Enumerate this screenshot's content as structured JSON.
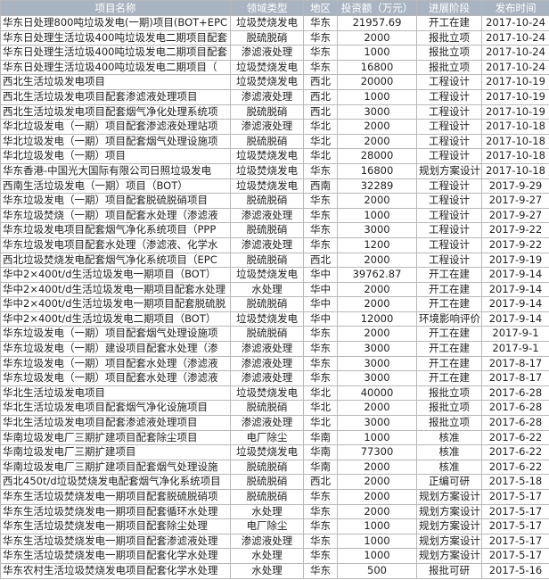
{
  "table": {
    "headers": [
      "项目名称",
      "领域类型",
      "地区",
      "投资额（万元）",
      "进展阶段",
      "发布时间"
    ],
    "rows": [
      [
        "华东日处理800吨垃圾发电(一期)项目(BOT+EPC",
        "垃圾焚烧发电",
        "华东",
        "21957.69",
        "开工在建",
        "2017-10-24"
      ],
      [
        "华东日处理生活垃圾400吨垃圾发电二期项目配套",
        "脱硫脱硝",
        "华东",
        "2000",
        "报批立项",
        "2017-10-24"
      ],
      [
        "华东日处理生活垃圾400吨垃圾发电二期项目配套",
        "渗滤液处理",
        "华东",
        "1000",
        "报批立项",
        "2017-10-24"
      ],
      [
        "华东日处理生活垃圾400吨垃圾发电二期项目（",
        "垃圾焚烧发电",
        "华东",
        "16800",
        "报批立项",
        "2017-10-24"
      ],
      [
        "西北生活垃圾发电项目",
        "垃圾焚烧发电",
        "西北",
        "20000",
        "工程设计",
        "2017-10-19"
      ],
      [
        "西北生活垃圾发电项目配套渗滤液处理项目",
        "渗滤液处理",
        "西北",
        "1000",
        "工程设计",
        "2017-10-19"
      ],
      [
        "西北生活垃圾发电项目配套烟气净化处理系统项",
        "脱硫脱硝",
        "西北",
        "3000",
        "工程设计",
        "2017-10-19"
      ],
      [
        "华北垃圾发电（一期）项目配套渗滤液处理站项",
        "渗滤液处理",
        "华北",
        "2000",
        "工程设计",
        "2017-10-18"
      ],
      [
        "华北垃圾发电（一期）项目配套烟气处理设施项",
        "脱硫脱硝",
        "华北",
        "2000",
        "工程设计",
        "2017-10-18"
      ],
      [
        "华北垃圾发电（一期）项目",
        "垃圾焚烧发电",
        "华北",
        "28000",
        "工程设计",
        "2017-10-18"
      ],
      [
        "华东香港-中国光大国际有限公司日照垃圾发电",
        "垃圾焚烧发电",
        "华东",
        "16800",
        "规划方案设计",
        "2017-10-18"
      ],
      [
        "西南生活垃圾发电（一期）项目（BOT）",
        "垃圾焚烧发电",
        "西南",
        "32289",
        "工程设计",
        "2017-9-29"
      ],
      [
        "华东垃圾发电（一期）项目配套脱硫脱硝项目",
        "脱硫脱硝",
        "华东",
        "2000",
        "工程设计",
        "2017-9-27"
      ],
      [
        "华东垃圾焚烧（一期）项目配套水处理（渗滤液",
        "渗滤液处理",
        "华东",
        "1000",
        "工程设计",
        "2017-9-27"
      ],
      [
        "华东垃圾发电项目配套烟气净化系统项目（PPP",
        "脱硫脱硝",
        "华东",
        "3000",
        "工程设计",
        "2017-9-22"
      ],
      [
        "华东垃圾发电项目配套水处理（渗滤液、化学水",
        "渗滤液处理",
        "华东",
        "1200",
        "工程设计",
        "2017-9-22"
      ],
      [
        "西北垃圾焚烧发电配套烟气净化系统项目（EPC",
        "脱硫脱硝",
        "西北",
        "2000",
        "工程设计",
        "2017-9-19"
      ],
      [
        "华中2×400t/d生活垃圾发电一期项目（BOT）",
        "垃圾焚烧发电",
        "华中",
        "39762.87",
        "开工在建",
        "2017-9-14"
      ],
      [
        "华中2×400t/d生活垃圾发电一期项目配套水处理",
        "水处理",
        "华中",
        "2000",
        "开工在建",
        "2017-9-14"
      ],
      [
        "华中2×400t/d生活垃圾发电一期项目配套脱硫脱",
        "脱硫脱硝",
        "华中",
        "2000",
        "开工在建",
        "2017-9-14"
      ],
      [
        "华中2×400t/d生活垃圾发电二期项目（BOT）",
        "垃圾焚烧发电",
        "华中",
        "12000",
        "环境影响评价",
        "2017-9-14"
      ],
      [
        "华东垃圾发电（一期）项目配套烟气处理设施项",
        "脱硫脱硝",
        "华东",
        "2000",
        "开工在建",
        "2017-9-1"
      ],
      [
        "华东垃圾发电（一期）建设项目配套水处理（渗",
        "渗滤液处理",
        "华东",
        "3000",
        "开工在建",
        "2017-9-1"
      ],
      [
        "华东垃圾发电（一期）项目配套水处理（渗滤液",
        "渗滤液处理",
        "华东",
        "3000",
        "开工在建",
        "2017-8-17"
      ],
      [
        "华东垃圾发电（一期）项目配套水处理（渗滤液",
        "渗滤液处理",
        "华东",
        "3000",
        "开工在建",
        "2017-8-17"
      ],
      [
        "华北生活垃圾发电项目",
        "垃圾焚烧发电",
        "华北",
        "40000",
        "报批立项",
        "2017-6-28"
      ],
      [
        "华北生活垃圾发电项目配套烟气净化设施项目",
        "脱硫脱硝",
        "华北",
        "2000",
        "报批立项",
        "2017-6-28"
      ],
      [
        "华北生活垃圾发电项目配套渗滤液处理项目",
        "渗滤液处理",
        "华北",
        "3000",
        "报批立项",
        "2017-6-28"
      ],
      [
        "华南垃圾发电厂三期扩建项目配套除尘项目",
        "电厂除尘",
        "华南",
        "1000",
        "核准",
        "2017-6-22"
      ],
      [
        "华南垃圾发电厂三期扩建项目",
        "垃圾焚烧发电",
        "华南",
        "77300",
        "核准",
        "2017-6-22"
      ],
      [
        "华南垃圾发电厂三期扩建项目配套烟气处理设施",
        "脱硫脱硝",
        "华南",
        "2000",
        "核准",
        "2017-6-22"
      ],
      [
        "西北450t/d垃圾焚烧发电配套烟气净化系统项目",
        "脱硫脱硝",
        "西北",
        "2000",
        "正编可研",
        "2017-5-18"
      ],
      [
        "华东生活垃圾焚烧发电一期项目配套脱硫脱硝项",
        "脱硫脱硝",
        "华东",
        "2000",
        "规划方案设计",
        "2017-5-17"
      ],
      [
        "华东生活垃圾焚烧发电一期项目配套循环水处理",
        "水处理",
        "华东",
        "2000",
        "规划方案设计",
        "2017-5-17"
      ],
      [
        "华东生活垃圾焚烧发电一期项目配套除尘处理",
        "电厂除尘",
        "华东",
        "1000",
        "规划方案设计",
        "2017-5-17"
      ],
      [
        "华东生活垃圾焚烧发电一期项目配套渗滤液处理",
        "渗滤液处理",
        "华东",
        "1000",
        "规划方案设计",
        "2017-5-17"
      ],
      [
        "华东生活垃圾焚烧发电一期项目配套化学水处理",
        "水处理",
        "华东",
        "1000",
        "规划方案设计",
        "2017-5-17"
      ],
      [
        "华东农村生活垃圾焚烧发电项目配套化学水处理",
        "水处理",
        "华东",
        "500",
        "报批可研",
        "2017-5-16"
      ]
    ]
  }
}
